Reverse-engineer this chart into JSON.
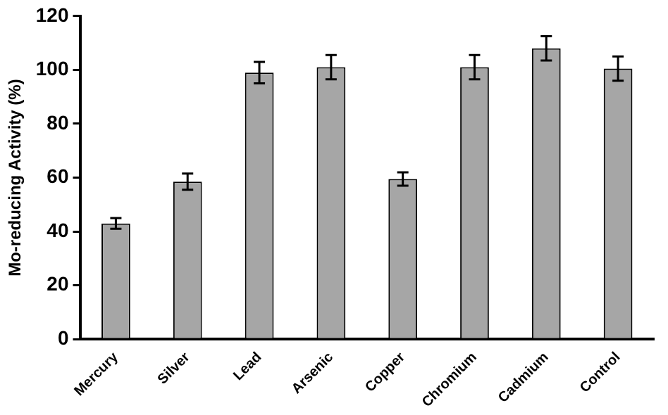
{
  "chart_data": {
    "type": "bar",
    "ylabel": "Mo-reducing Activity (%)",
    "categories": [
      "Mercury",
      "Silver",
      "Lead",
      "Arsenic",
      "Copper",
      "Chromium",
      "Cadmium",
      "Control"
    ],
    "values": [
      43,
      58.5,
      99,
      101,
      59.5,
      101,
      108,
      100.5
    ],
    "errors": [
      2,
      3,
      4,
      4.5,
      2.5,
      4.5,
      4.5,
      4.5
    ],
    "color": "#a6a6a6",
    "ylim": [
      0,
      120
    ],
    "yticks": [
      0,
      20,
      40,
      60,
      80,
      100,
      120
    ],
    "grid": false,
    "legend": false
  }
}
